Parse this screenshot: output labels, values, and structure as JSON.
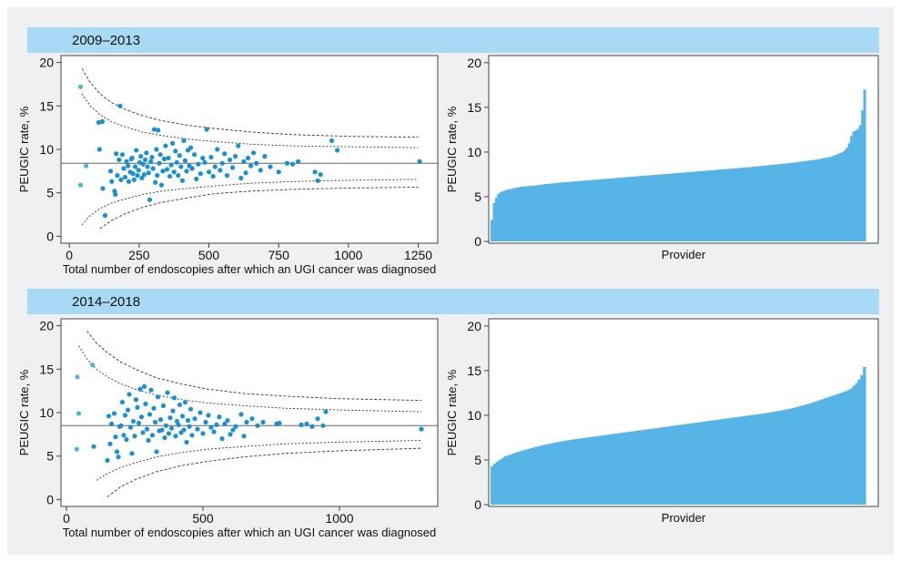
{
  "colors": {
    "point": "#1a8fd1",
    "point_light": "#4cb7de",
    "bar": "#57b4e6",
    "band": "#a8d9f5",
    "panel_bg": "#ffffff",
    "frame_bg": "#eef0f1",
    "limit_line": "#333333",
    "mean_line": "#666666"
  },
  "sections": [
    {
      "label": "2009–2013"
    },
    {
      "label": "2014–2018"
    }
  ],
  "chart_data": [
    {
      "type": "scatter",
      "title": "",
      "xlabel": "Total number of endoscopies after which an UGI cancer was diagnosed",
      "ylabel": "PEUGIC rate, %",
      "xlim": [
        -30,
        1320
      ],
      "ylim": [
        -0.8,
        20.8
      ],
      "xticks": [
        0,
        250,
        500,
        750,
        1000,
        1250
      ],
      "yticks": [
        0,
        5,
        10,
        15,
        20
      ],
      "grid": false,
      "mean": 8.4,
      "limits": {
        "x": [
          45,
          75,
          110,
          150,
          200,
          260,
          330,
          420,
          520,
          650,
          800,
          1000,
          1250
        ],
        "upper99": [
          19.3,
          17.7,
          16.4,
          15.4,
          14.6,
          13.9,
          13.3,
          12.8,
          12.4,
          12.0,
          11.7,
          11.5,
          11.4
        ],
        "upper95": [
          16.4,
          15.0,
          14.0,
          13.2,
          12.6,
          12.0,
          11.6,
          11.2,
          10.9,
          10.6,
          10.4,
          10.3,
          10.2
        ],
        "lower95": [
          1.3,
          2.4,
          3.2,
          3.8,
          4.3,
          4.8,
          5.2,
          5.5,
          5.8,
          6.1,
          6.3,
          6.45,
          6.55
        ],
        "lower99": [
          null,
          null,
          0.9,
          1.8,
          2.6,
          3.3,
          3.9,
          4.4,
          4.9,
          5.2,
          5.4,
          5.55,
          5.65
        ]
      },
      "light_points": [
        [
          40,
          17.2
        ],
        [
          40,
          5.9
        ],
        [
          60,
          8.1
        ]
      ],
      "points": [
        [
          105,
          13.1
        ],
        [
          118,
          13.2
        ],
        [
          108,
          10.0
        ],
        [
          120,
          5.5
        ],
        [
          128,
          2.4
        ],
        [
          148,
          7.5
        ],
        [
          152,
          6.3
        ],
        [
          162,
          5.2
        ],
        [
          165,
          4.8
        ],
        [
          168,
          9.5
        ],
        [
          172,
          7.0
        ],
        [
          178,
          8.8
        ],
        [
          182,
          15.0
        ],
        [
          185,
          6.5
        ],
        [
          190,
          9.4
        ],
        [
          195,
          7.8
        ],
        [
          200,
          6.8
        ],
        [
          205,
          8.6
        ],
        [
          210,
          8.1
        ],
        [
          213,
          6.3
        ],
        [
          218,
          7.4
        ],
        [
          222,
          8.9
        ],
        [
          225,
          9.0
        ],
        [
          228,
          7.2
        ],
        [
          232,
          6.5
        ],
        [
          236,
          8.0
        ],
        [
          240,
          9.9
        ],
        [
          244,
          7.0
        ],
        [
          248,
          7.6
        ],
        [
          252,
          8.5
        ],
        [
          256,
          9.2
        ],
        [
          260,
          6.7
        ],
        [
          264,
          8.3
        ],
        [
          268,
          7.1
        ],
        [
          272,
          8.8
        ],
        [
          276,
          9.6
        ],
        [
          280,
          8.0
        ],
        [
          284,
          7.3
        ],
        [
          288,
          4.2
        ],
        [
          292,
          8.6
        ],
        [
          296,
          9.1
        ],
        [
          300,
          7.8
        ],
        [
          304,
          12.3
        ],
        [
          308,
          6.2
        ],
        [
          312,
          10.0
        ],
        [
          315,
          7.0
        ],
        [
          318,
          12.2
        ],
        [
          322,
          8.4
        ],
        [
          326,
          9.4
        ],
        [
          330,
          5.9
        ],
        [
          335,
          7.5
        ],
        [
          340,
          8.9
        ],
        [
          345,
          10.4
        ],
        [
          350,
          7.7
        ],
        [
          355,
          9.0
        ],
        [
          360,
          6.9
        ],
        [
          365,
          8.2
        ],
        [
          370,
          10.7
        ],
        [
          375,
          7.4
        ],
        [
          380,
          9.8
        ],
        [
          385,
          8.5
        ],
        [
          390,
          7.0
        ],
        [
          395,
          9.3
        ],
        [
          400,
          8.0
        ],
        [
          405,
          6.4
        ],
        [
          410,
          11.0
        ],
        [
          415,
          8.7
        ],
        [
          420,
          7.5
        ],
        [
          425,
          9.9
        ],
        [
          430,
          8.1
        ],
        [
          435,
          10.2
        ],
        [
          440,
          7.8
        ],
        [
          448,
          9.4
        ],
        [
          455,
          6.6
        ],
        [
          462,
          8.3
        ],
        [
          470,
          7.2
        ],
        [
          478,
          9.0
        ],
        [
          485,
          8.5
        ],
        [
          492,
          12.3
        ],
        [
          500,
          7.4
        ],
        [
          508,
          9.1
        ],
        [
          515,
          6.9
        ],
        [
          522,
          8.0
        ],
        [
          530,
          10.0
        ],
        [
          540,
          7.6
        ],
        [
          548,
          8.4
        ],
        [
          556,
          9.5
        ],
        [
          565,
          7.0
        ],
        [
          575,
          8.8
        ],
        [
          585,
          7.9
        ],
        [
          595,
          9.2
        ],
        [
          605,
          10.4
        ],
        [
          615,
          6.7
        ],
        [
          625,
          8.6
        ],
        [
          632,
          7.3
        ],
        [
          640,
          9.0
        ],
        [
          650,
          8.1
        ],
        [
          660,
          9.6
        ],
        [
          670,
          8.4
        ],
        [
          685,
          7.6
        ],
        [
          700,
          9.2
        ],
        [
          720,
          8.0
        ],
        [
          750,
          7.4
        ],
        [
          780,
          8.4
        ],
        [
          800,
          8.3
        ],
        [
          820,
          8.6
        ],
        [
          880,
          7.4
        ],
        [
          890,
          6.4
        ],
        [
          900,
          7.1
        ],
        [
          940,
          11.0
        ],
        [
          960,
          9.9
        ],
        [
          1255,
          8.6
        ]
      ]
    },
    {
      "type": "bar",
      "title": "",
      "xlabel": "Provider",
      "ylabel": "PEUGIC rate, %",
      "ylim": [
        -0.2,
        20.8
      ],
      "yticks": [
        0,
        5,
        10,
        15,
        20
      ],
      "grid": false,
      "values": [
        2.4,
        4.3,
        4.9,
        5.3,
        5.5,
        5.6,
        5.7,
        5.8,
        5.85,
        5.9,
        5.95,
        6.0,
        6.05,
        6.1,
        6.12,
        6.15,
        6.18,
        6.2,
        6.22,
        6.25,
        6.28,
        6.3,
        6.33,
        6.36,
        6.4,
        6.42,
        6.45,
        6.48,
        6.5,
        6.52,
        6.55,
        6.58,
        6.6,
        6.62,
        6.64,
        6.66,
        6.68,
        6.7,
        6.72,
        6.74,
        6.76,
        6.78,
        6.8,
        6.82,
        6.84,
        6.86,
        6.88,
        6.9,
        6.92,
        6.94,
        6.96,
        6.98,
        7.0,
        7.02,
        7.04,
        7.06,
        7.08,
        7.1,
        7.12,
        7.14,
        7.16,
        7.18,
        7.2,
        7.22,
        7.24,
        7.26,
        7.28,
        7.3,
        7.32,
        7.34,
        7.36,
        7.38,
        7.4,
        7.42,
        7.44,
        7.46,
        7.48,
        7.5,
        7.52,
        7.54,
        7.56,
        7.58,
        7.6,
        7.62,
        7.64,
        7.66,
        7.68,
        7.7,
        7.72,
        7.74,
        7.76,
        7.78,
        7.8,
        7.82,
        7.84,
        7.86,
        7.88,
        7.9,
        7.92,
        7.94,
        7.96,
        7.98,
        8.0,
        8.02,
        8.04,
        8.06,
        8.08,
        8.1,
        8.12,
        8.14,
        8.16,
        8.18,
        8.2,
        8.22,
        8.24,
        8.26,
        8.28,
        8.3,
        8.32,
        8.35,
        8.38,
        8.4,
        8.42,
        8.45,
        8.48,
        8.5,
        8.52,
        8.55,
        8.58,
        8.6,
        8.62,
        8.65,
        8.68,
        8.7,
        8.72,
        8.75,
        8.78,
        8.8,
        8.83,
        8.86,
        8.9,
        8.93,
        8.96,
        9.0,
        9.03,
        9.06,
        9.1,
        9.13,
        9.17,
        9.2,
        9.25,
        9.3,
        9.35,
        9.4,
        9.45,
        9.5,
        9.6,
        9.7,
        9.8,
        9.9,
        10.0,
        10.2,
        10.5,
        11.0,
        11.8,
        12.3,
        12.4,
        12.6,
        13.0,
        14.7,
        17.0
      ]
    },
    {
      "type": "scatter",
      "title": "",
      "xlabel": "Total number of endoscopies after which an UGI cancer was diagnosed",
      "ylabel": "PEUGIC rate, %",
      "xlim": [
        -20,
        1360
      ],
      "ylim": [
        -0.8,
        20.8
      ],
      "xticks": [
        0,
        500,
        1000
      ],
      "yticks": [
        0,
        5,
        10,
        15,
        20
      ],
      "grid": false,
      "mean": 8.5,
      "limits": {
        "x": [
          45,
          75,
          110,
          150,
          200,
          260,
          330,
          420,
          520,
          650,
          800,
          1000,
          1300
        ],
        "upper99": [
          null,
          19.4,
          18.0,
          16.9,
          15.8,
          14.9,
          14.0,
          13.3,
          12.7,
          12.2,
          11.9,
          11.6,
          11.4
        ],
        "upper95": [
          17.7,
          16.2,
          15.0,
          14.1,
          13.3,
          12.6,
          12.0,
          11.5,
          11.1,
          10.8,
          10.5,
          10.3,
          10.1
        ],
        "lower95": [
          null,
          null,
          2.2,
          3.0,
          3.7,
          4.3,
          4.9,
          5.4,
          5.8,
          6.1,
          6.4,
          6.6,
          6.8
        ],
        "lower99": [
          null,
          null,
          null,
          0.3,
          1.5,
          2.4,
          3.2,
          3.9,
          4.4,
          4.9,
          5.3,
          5.6,
          5.9
        ]
      },
      "light_points": [
        [
          40,
          14.1
        ],
        [
          45,
          9.9
        ],
        [
          38,
          5.8
        ],
        [
          95,
          15.5
        ]
      ],
      "points": [
        [
          100,
          6.1
        ],
        [
          150,
          4.5
        ],
        [
          155,
          9.6
        ],
        [
          160,
          6.4
        ],
        [
          165,
          8.7
        ],
        [
          175,
          9.9
        ],
        [
          180,
          7.2
        ],
        [
          185,
          5.5
        ],
        [
          190,
          4.9
        ],
        [
          195,
          8.4
        ],
        [
          200,
          8.5
        ],
        [
          205,
          11.2
        ],
        [
          210,
          7.4
        ],
        [
          215,
          9.7
        ],
        [
          220,
          6.9
        ],
        [
          225,
          10.3
        ],
        [
          230,
          12.1
        ],
        [
          235,
          8.3
        ],
        [
          240,
          5.3
        ],
        [
          245,
          9.0
        ],
        [
          250,
          7.3
        ],
        [
          255,
          11.5
        ],
        [
          260,
          10.6
        ],
        [
          265,
          8.8
        ],
        [
          270,
          12.7
        ],
        [
          275,
          9.5
        ],
        [
          280,
          7.7
        ],
        [
          285,
          13.0
        ],
        [
          290,
          11.0
        ],
        [
          295,
          8.1
        ],
        [
          300,
          6.8
        ],
        [
          305,
          9.8
        ],
        [
          310,
          12.6
        ],
        [
          315,
          7.4
        ],
        [
          320,
          10.5
        ],
        [
          325,
          8.9
        ],
        [
          330,
          5.5
        ],
        [
          335,
          11.8
        ],
        [
          340,
          7.9
        ],
        [
          345,
          9.2
        ],
        [
          350,
          8.0
        ],
        [
          355,
          10.8
        ],
        [
          360,
          7.1
        ],
        [
          365,
          8.5
        ],
        [
          370,
          12.3
        ],
        [
          375,
          7.6
        ],
        [
          380,
          9.4
        ],
        [
          385,
          8.2
        ],
        [
          390,
          10.2
        ],
        [
          395,
          11.7
        ],
        [
          400,
          7.3
        ],
        [
          405,
          9.0
        ],
        [
          410,
          8.6
        ],
        [
          415,
          10.9
        ],
        [
          420,
          7.7
        ],
        [
          425,
          9.6
        ],
        [
          430,
          8.0
        ],
        [
          435,
          11.2
        ],
        [
          440,
          6.6
        ],
        [
          445,
          9.1
        ],
        [
          450,
          8.4
        ],
        [
          455,
          10.4
        ],
        [
          460,
          7.4
        ],
        [
          470,
          9.3
        ],
        [
          480,
          8.1
        ],
        [
          490,
          10.0
        ],
        [
          500,
          7.6
        ],
        [
          510,
          8.9
        ],
        [
          520,
          9.7
        ],
        [
          530,
          8.3
        ],
        [
          540,
          7.8
        ],
        [
          550,
          8.6
        ],
        [
          560,
          9.5
        ],
        [
          570,
          7.0
        ],
        [
          580,
          8.7
        ],
        [
          590,
          9.1
        ],
        [
          600,
          7.5
        ],
        [
          610,
          8.0
        ],
        [
          620,
          8.4
        ],
        [
          640,
          9.8
        ],
        [
          650,
          7.3
        ],
        [
          660,
          8.9
        ],
        [
          680,
          9.3
        ],
        [
          700,
          8.5
        ],
        [
          720,
          8.9
        ],
        [
          770,
          8.7
        ],
        [
          780,
          8.8
        ],
        [
          860,
          8.6
        ],
        [
          880,
          8.7
        ],
        [
          900,
          8.4
        ],
        [
          920,
          9.3
        ],
        [
          940,
          8.5
        ],
        [
          950,
          10.1
        ],
        [
          1300,
          8.1
        ]
      ]
    },
    {
      "type": "bar",
      "title": "",
      "xlabel": "Provider",
      "ylabel": "PEUGIC rate, %",
      "ylim": [
        -0.2,
        20.8
      ],
      "yticks": [
        0,
        5,
        10,
        15,
        20
      ],
      "grid": false,
      "values": [
        4.3,
        4.6,
        4.8,
        5.0,
        5.2,
        5.4,
        5.5,
        5.6,
        5.7,
        5.8,
        5.9,
        6.0,
        6.08,
        6.16,
        6.24,
        6.32,
        6.4,
        6.48,
        6.55,
        6.62,
        6.7,
        6.76,
        6.82,
        6.88,
        6.94,
        7.0,
        7.05,
        7.1,
        7.15,
        7.2,
        7.25,
        7.3,
        7.34,
        7.38,
        7.42,
        7.46,
        7.5,
        7.54,
        7.58,
        7.62,
        7.66,
        7.7,
        7.74,
        7.78,
        7.82,
        7.86,
        7.9,
        7.94,
        7.98,
        8.02,
        8.06,
        8.1,
        8.14,
        8.18,
        8.22,
        8.26,
        8.3,
        8.34,
        8.38,
        8.42,
        8.46,
        8.5,
        8.54,
        8.58,
        8.62,
        8.66,
        8.7,
        8.74,
        8.78,
        8.82,
        8.86,
        8.9,
        8.94,
        8.98,
        9.02,
        9.06,
        9.1,
        9.14,
        9.18,
        9.22,
        9.26,
        9.3,
        9.34,
        9.38,
        9.42,
        9.46,
        9.5,
        9.54,
        9.58,
        9.62,
        9.66,
        9.7,
        9.74,
        9.78,
        9.82,
        9.86,
        9.9,
        9.94,
        9.98,
        10.02,
        10.06,
        10.1,
        10.14,
        10.18,
        10.22,
        10.27,
        10.32,
        10.37,
        10.42,
        10.47,
        10.52,
        10.58,
        10.64,
        10.7,
        10.76,
        10.82,
        10.9,
        10.98,
        11.06,
        11.14,
        11.22,
        11.3,
        11.4,
        11.5,
        11.6,
        11.7,
        11.8,
        11.9,
        12.0,
        12.1,
        12.2,
        12.3,
        12.4,
        12.5,
        12.6,
        12.7,
        12.85,
        13.0,
        13.3,
        13.6,
        14.0,
        14.5,
        15.4
      ]
    }
  ]
}
